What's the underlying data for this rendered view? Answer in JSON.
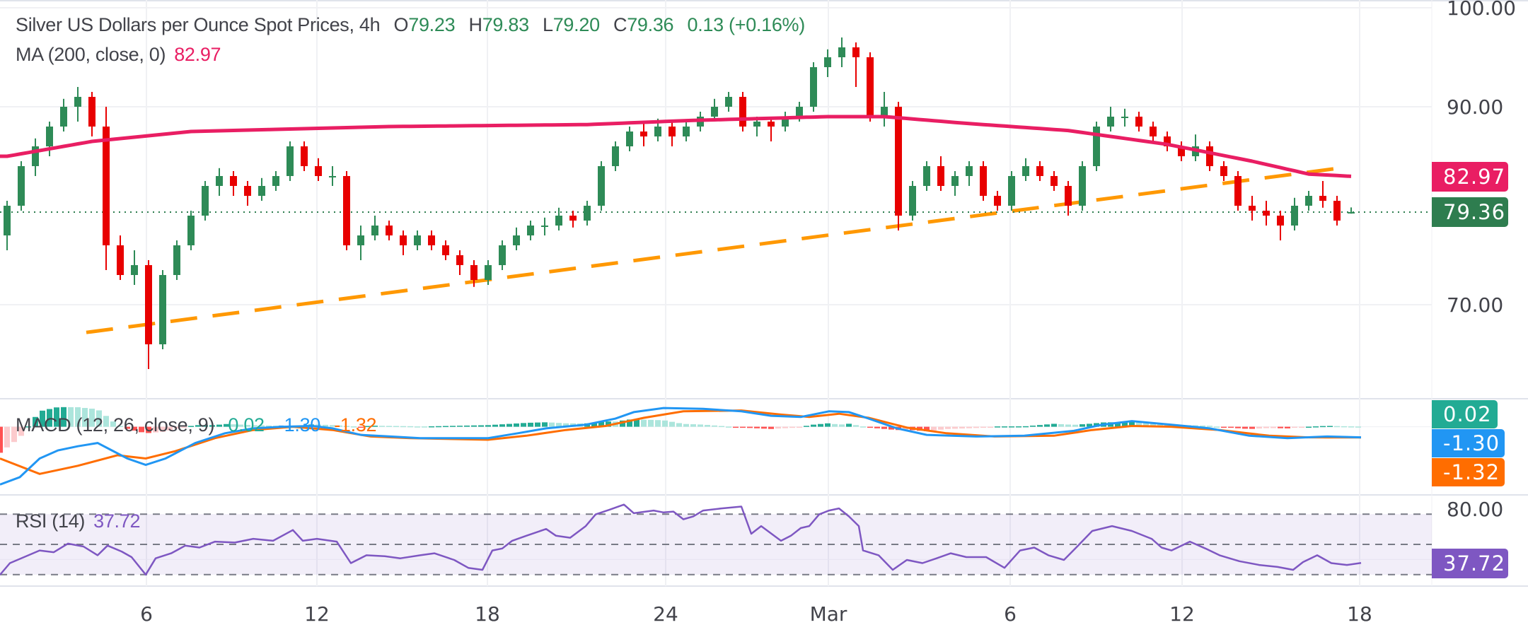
{
  "header": {
    "title": "Silver US Dollars per Ounce Spot Prices, 4h",
    "ohlc": [
      {
        "label": "O",
        "value": "79.23"
      },
      {
        "label": "H",
        "value": "79.83"
      },
      {
        "label": "L",
        "value": "79.20"
      },
      {
        "label": "C",
        "value": "79.36"
      }
    ],
    "change": "0.13",
    "change_pct": "(+0.16%)",
    "ma_label": "MA (200, close, 0)",
    "ma_value": "82.97"
  },
  "macd_legend": {
    "label": "MACD (12, 26, close, 9)",
    "hist": "0.02",
    "macd": "-1.30",
    "signal": "-1.32"
  },
  "rsi_legend": {
    "label": "RSI (14)",
    "value": "37.72"
  },
  "tags": {
    "ma": "82.97",
    "price": "79.36",
    "hist": "0.02",
    "macd": "-1.30",
    "signal": "-1.32",
    "rsi": "37.72"
  },
  "colors": {
    "up": "#2e8b57",
    "down": "#e80000",
    "ma": "#e91e63",
    "trendline": "#ff9800",
    "macd": "#2196f3",
    "signal": "#ff6d00",
    "hist_up_strong": "#22ab94",
    "hist_up_weak": "#ace5dc",
    "hist_down_strong": "#ff5252",
    "hist_down_weak": "#fccbcd",
    "rsi": "#7e57c2",
    "price_tag": "#2e7d4f"
  },
  "chart_data": [
    {
      "type": "candlestick",
      "title": "Silver US Dollars per Ounce Spot Prices, 4h",
      "x_ticks": [
        "6",
        "12",
        "18",
        "24",
        "Mar",
        "6",
        "12",
        "18"
      ],
      "y_ticks": [
        "100.00",
        "90.00",
        "70.00"
      ],
      "ylim": [
        60.6,
        100.8
      ],
      "grid": true,
      "last_price": 79.36,
      "candles_ohlc": [
        [
          77,
          80.5,
          75.5,
          80
        ],
        [
          80,
          84.5,
          79.5,
          84
        ],
        [
          84,
          86.8,
          83,
          86
        ],
        [
          86,
          88.5,
          85,
          88
        ],
        [
          88,
          90.8,
          87.5,
          90
        ],
        [
          90,
          92,
          88.5,
          91
        ],
        [
          91,
          91.5,
          87,
          88
        ],
        [
          88,
          90,
          73.5,
          76
        ],
        [
          76,
          77,
          72.5,
          73
        ],
        [
          73,
          75.5,
          72,
          74
        ],
        [
          74,
          74.5,
          63.5,
          66
        ],
        [
          66,
          73.5,
          65.5,
          73
        ],
        [
          73,
          76.5,
          72.5,
          76
        ],
        [
          76,
          79.5,
          75.5,
          79
        ],
        [
          79,
          82.5,
          78.5,
          82
        ],
        [
          82,
          83.8,
          81,
          83
        ],
        [
          83,
          83.5,
          81,
          82
        ],
        [
          82,
          82.5,
          80,
          81
        ],
        [
          81,
          82.8,
          80.5,
          82
        ],
        [
          82,
          83.5,
          81.5,
          83
        ],
        [
          83,
          86.5,
          82.5,
          86
        ],
        [
          86,
          86.5,
          83.5,
          84
        ],
        [
          84,
          84.8,
          82.5,
          83
        ],
        [
          83,
          84,
          82,
          83
        ],
        [
          83,
          83.5,
          75.5,
          76
        ],
        [
          76,
          78,
          74.5,
          77
        ],
        [
          77,
          79,
          76.5,
          78
        ],
        [
          78,
          78.5,
          76.5,
          77
        ],
        [
          77,
          77.5,
          75,
          76
        ],
        [
          76,
          77.5,
          75.5,
          77
        ],
        [
          77,
          77.5,
          75.5,
          76
        ],
        [
          76,
          76.5,
          74.5,
          75
        ],
        [
          75,
          75.5,
          73,
          74
        ],
        [
          74,
          74.5,
          71.8,
          72.5
        ],
        [
          72.5,
          74.5,
          72,
          74
        ],
        [
          74,
          76.5,
          73.5,
          76
        ],
        [
          76,
          77.8,
          75.5,
          77
        ],
        [
          77,
          78.5,
          76.5,
          78
        ],
        [
          78,
          78.8,
          77,
          78
        ],
        [
          78,
          79.8,
          77.5,
          79
        ],
        [
          79,
          79.5,
          77.8,
          78.5
        ],
        [
          78.5,
          80.5,
          78,
          80
        ],
        [
          80,
          84.5,
          79.5,
          84
        ],
        [
          84,
          86.5,
          83.5,
          86
        ],
        [
          86,
          88,
          85.5,
          87.5
        ],
        [
          87.5,
          88.5,
          86,
          87
        ],
        [
          87,
          88.8,
          86.5,
          88
        ],
        [
          88,
          88.5,
          86,
          87
        ],
        [
          87,
          88.5,
          86.5,
          88
        ],
        [
          88,
          89.5,
          87.5,
          89
        ],
        [
          89,
          90.8,
          88.5,
          90
        ],
        [
          90,
          91.5,
          89.5,
          91
        ],
        [
          91,
          91.5,
          87.5,
          88
        ],
        [
          88,
          89,
          87,
          88.5
        ],
        [
          88.5,
          89,
          86.5,
          88
        ],
        [
          88,
          89.5,
          87.5,
          89
        ],
        [
          89,
          90.5,
          88.5,
          90
        ],
        [
          90,
          94.5,
          89.5,
          94
        ],
        [
          94,
          95.8,
          93,
          95
        ],
        [
          95,
          97,
          94,
          96
        ],
        [
          96,
          96.5,
          92,
          95
        ],
        [
          95,
          95.5,
          88.5,
          89
        ],
        [
          89,
          91.5,
          88,
          90
        ],
        [
          90,
          90.5,
          77.5,
          79
        ],
        [
          79,
          82.5,
          78.5,
          82
        ],
        [
          82,
          84.5,
          81.5,
          84
        ],
        [
          84,
          85,
          81.5,
          82
        ],
        [
          82,
          83.5,
          81,
          83
        ],
        [
          83,
          84.5,
          82,
          84
        ],
        [
          84,
          84.5,
          80.5,
          81
        ],
        [
          81,
          81.5,
          79.5,
          80
        ],
        [
          80,
          83.5,
          79.5,
          83
        ],
        [
          83,
          84.8,
          82.5,
          84
        ],
        [
          84,
          84.5,
          82.5,
          83
        ],
        [
          83,
          83.5,
          81.5,
          82
        ],
        [
          82,
          82.5,
          79,
          80
        ],
        [
          80,
          84.5,
          79.5,
          84
        ],
        [
          84,
          88.5,
          83.5,
          88
        ],
        [
          88,
          90,
          87.5,
          89
        ],
        [
          89,
          89.8,
          88,
          89
        ],
        [
          89,
          89.5,
          87.5,
          88
        ],
        [
          88,
          88.5,
          86.5,
          87
        ],
        [
          87,
          87.5,
          85.5,
          86
        ],
        [
          86,
          86.5,
          84.5,
          85
        ],
        [
          85,
          87.2,
          84.5,
          86
        ],
        [
          86,
          86.5,
          83.5,
          84
        ],
        [
          84,
          84.5,
          82.5,
          83
        ],
        [
          83,
          83.5,
          79.5,
          80
        ],
        [
          80,
          81,
          78.5,
          79.5
        ],
        [
          79.5,
          80.5,
          78,
          79
        ],
        [
          79,
          79.5,
          76.5,
          78
        ],
        [
          78,
          80.8,
          77.5,
          80
        ],
        [
          80,
          81.5,
          79.5,
          81
        ],
        [
          81,
          82.5,
          79.8,
          80.5
        ],
        [
          80.5,
          81,
          78,
          78.5
        ],
        [
          79.23,
          79.83,
          79.2,
          79.36
        ]
      ],
      "ma200": [
        [
          0,
          85
        ],
        [
          6,
          86.5
        ],
        [
          13,
          87.5
        ],
        [
          27,
          88
        ],
        [
          41,
          88.2
        ],
        [
          48,
          88.6
        ],
        [
          58,
          89
        ],
        [
          62,
          89
        ],
        [
          68,
          88.3
        ],
        [
          75,
          87.6
        ],
        [
          82,
          86.2
        ],
        [
          88,
          84.5
        ],
        [
          92,
          83.2
        ],
        [
          95,
          82.97
        ]
      ],
      "trendline": [
        [
          5.6,
          67.2
        ],
        [
          94.7,
          83.9
        ]
      ]
    },
    {
      "type": "line",
      "title": "MACD (12, 26, close, 9)",
      "macd": [
        [
          -0.5,
          -7.1
        ],
        [
          0.9,
          -6.2
        ],
        [
          2.3,
          -3.9
        ],
        [
          3.6,
          -2.9
        ],
        [
          5,
          -2.4
        ],
        [
          6.4,
          -2.0
        ],
        [
          7.4,
          -2.9
        ],
        [
          8.5,
          -3.9
        ],
        [
          9.8,
          -4.7
        ],
        [
          11.2,
          -3.9
        ],
        [
          13.3,
          -2.0
        ],
        [
          15.4,
          -0.8
        ],
        [
          17.4,
          -0.2
        ],
        [
          19.5,
          0
        ],
        [
          21.6,
          0.1
        ],
        [
          23,
          -0.2
        ],
        [
          25,
          -1.0
        ],
        [
          27.1,
          -1.2
        ],
        [
          29.2,
          -1.4
        ],
        [
          31.9,
          -1.4
        ],
        [
          34,
          -1.4
        ],
        [
          36.1,
          -0.8
        ],
        [
          38.1,
          -0.2
        ],
        [
          40.9,
          0.25
        ],
        [
          43,
          1.0
        ],
        [
          44.3,
          1.8
        ],
        [
          46.4,
          2.3
        ],
        [
          49.2,
          2.2
        ],
        [
          51.9,
          1.9
        ],
        [
          54,
          1.35
        ],
        [
          56.1,
          1.2
        ],
        [
          58.1,
          1.9
        ],
        [
          59.5,
          1.8
        ],
        [
          60.9,
          1.0
        ],
        [
          62.9,
          -0.2
        ],
        [
          65,
          -1.0
        ],
        [
          68.5,
          -1.2
        ],
        [
          71.9,
          -1.1
        ],
        [
          75.4,
          -0.5
        ],
        [
          77.4,
          0.25
        ],
        [
          79.5,
          0.7
        ],
        [
          82.3,
          0.25
        ],
        [
          85,
          -0.2
        ],
        [
          87.8,
          -1.1
        ],
        [
          90.5,
          -1.4
        ],
        [
          93.3,
          -1.2
        ],
        [
          95.7,
          -1.3
        ]
      ],
      "signal": [
        [
          -0.5,
          -3.9
        ],
        [
          2.3,
          -5.8
        ],
        [
          5,
          -4.8
        ],
        [
          7.8,
          -3.5
        ],
        [
          9.8,
          -3.9
        ],
        [
          11.9,
          -3.0
        ],
        [
          14.7,
          -1.4
        ],
        [
          17.4,
          -0.4
        ],
        [
          20.2,
          0
        ],
        [
          23,
          -0.4
        ],
        [
          25.7,
          -1.2
        ],
        [
          28.5,
          -1.4
        ],
        [
          34,
          -1.6
        ],
        [
          36.7,
          -1.1
        ],
        [
          39.5,
          -0.4
        ],
        [
          42.3,
          0.1
        ],
        [
          45,
          1.1
        ],
        [
          47.8,
          1.9
        ],
        [
          51.9,
          2.0
        ],
        [
          54.7,
          1.5
        ],
        [
          56.7,
          1.2
        ],
        [
          58.8,
          1.6
        ],
        [
          60.9,
          1.1
        ],
        [
          63.6,
          -0.1
        ],
        [
          66.4,
          -0.8
        ],
        [
          69.8,
          -1.2
        ],
        [
          74,
          -1.1
        ],
        [
          76.7,
          -0.4
        ],
        [
          79.5,
          0.1
        ],
        [
          82.3,
          0
        ],
        [
          85.7,
          -0.4
        ],
        [
          89.2,
          -1.1
        ],
        [
          91.9,
          -1.3
        ],
        [
          95.7,
          -1.32
        ]
      ],
      "zero_line": 0
    },
    {
      "type": "line",
      "title": "RSI (14)",
      "levels": [
        70,
        50,
        30
      ],
      "y_ticks": [
        "80.00"
      ],
      "rsi": [
        [
          -0.5,
          29.9
        ],
        [
          0.2,
          37.6
        ],
        [
          1.2,
          41.6
        ],
        [
          2.3,
          46.0
        ],
        [
          3.3,
          44.8
        ],
        [
          4.3,
          50.5
        ],
        [
          5.4,
          48.6
        ],
        [
          6.4,
          42.8
        ],
        [
          7.1,
          49.2
        ],
        [
          8.1,
          45.3
        ],
        [
          8.8,
          41.6
        ],
        [
          9.8,
          30
        ],
        [
          10.5,
          40.8
        ],
        [
          11.6,
          44.1
        ],
        [
          12.6,
          49.2
        ],
        [
          13.6,
          47.9
        ],
        [
          14.7,
          51.8
        ],
        [
          16.1,
          51.2
        ],
        [
          17.4,
          53.7
        ],
        [
          18.8,
          52.4
        ],
        [
          20.2,
          59.5
        ],
        [
          20.9,
          52.4
        ],
        [
          21.9,
          53.7
        ],
        [
          23.3,
          51.8
        ],
        [
          24.3,
          37.6
        ],
        [
          25.4,
          42.8
        ],
        [
          26.7,
          42.2
        ],
        [
          27.8,
          40.8
        ],
        [
          29.2,
          42.8
        ],
        [
          30.2,
          44.1
        ],
        [
          31.6,
          39.7
        ],
        [
          32.6,
          34.5
        ],
        [
          33.6,
          33.2
        ],
        [
          34.3,
          46
        ],
        [
          35,
          47.3
        ],
        [
          35.7,
          52.4
        ],
        [
          36.7,
          55.7
        ],
        [
          38.1,
          60.2
        ],
        [
          38.8,
          55.7
        ],
        [
          39.8,
          54.4
        ],
        [
          40.9,
          62.1
        ],
        [
          41.6,
          69.8
        ],
        [
          42.6,
          73
        ],
        [
          43.6,
          76.3
        ],
        [
          44.3,
          70.6
        ],
        [
          45.7,
          72.4
        ],
        [
          46.4,
          71.1
        ],
        [
          47.1,
          71.7
        ],
        [
          47.8,
          66.6
        ],
        [
          48.5,
          68.5
        ],
        [
          49.2,
          72.4
        ],
        [
          50.5,
          73.8
        ],
        [
          51.9,
          75
        ],
        [
          52.6,
          57
        ],
        [
          53.3,
          62.1
        ],
        [
          54.7,
          52.4
        ],
        [
          55.4,
          55.7
        ],
        [
          56.1,
          60.8
        ],
        [
          56.7,
          62.1
        ],
        [
          57.4,
          69.8
        ],
        [
          58.1,
          72.4
        ],
        [
          58.8,
          73.8
        ],
        [
          59.5,
          68.5
        ],
        [
          60.2,
          62.1
        ],
        [
          60.5,
          46
        ],
        [
          61.6,
          42.8
        ],
        [
          62.6,
          33.2
        ],
        [
          63.6,
          39.7
        ],
        [
          64.7,
          37.6
        ],
        [
          65.7,
          40.8
        ],
        [
          66.7,
          44.1
        ],
        [
          67.8,
          41.6
        ],
        [
          69.2,
          41.6
        ],
        [
          70.5,
          34.5
        ],
        [
          71.6,
          46
        ],
        [
          72.6,
          47.9
        ],
        [
          73.6,
          42.8
        ],
        [
          74.7,
          39.7
        ],
        [
          75.7,
          49.2
        ],
        [
          76.7,
          58.9
        ],
        [
          78.1,
          62.1
        ],
        [
          79.5,
          58.9
        ],
        [
          80.9,
          53.7
        ],
        [
          81.6,
          47.9
        ],
        [
          82.3,
          46
        ],
        [
          83.6,
          51.8
        ],
        [
          84.7,
          47.3
        ],
        [
          85.7,
          42.8
        ],
        [
          87.1,
          38.9
        ],
        [
          88.5,
          36.4
        ],
        [
          89.8,
          35.1
        ],
        [
          90.9,
          33.2
        ],
        [
          91.6,
          38.3
        ],
        [
          92.6,
          42.8
        ],
        [
          93.6,
          37.6
        ],
        [
          94.7,
          36.4
        ],
        [
          95.7,
          37.72
        ]
      ]
    }
  ]
}
